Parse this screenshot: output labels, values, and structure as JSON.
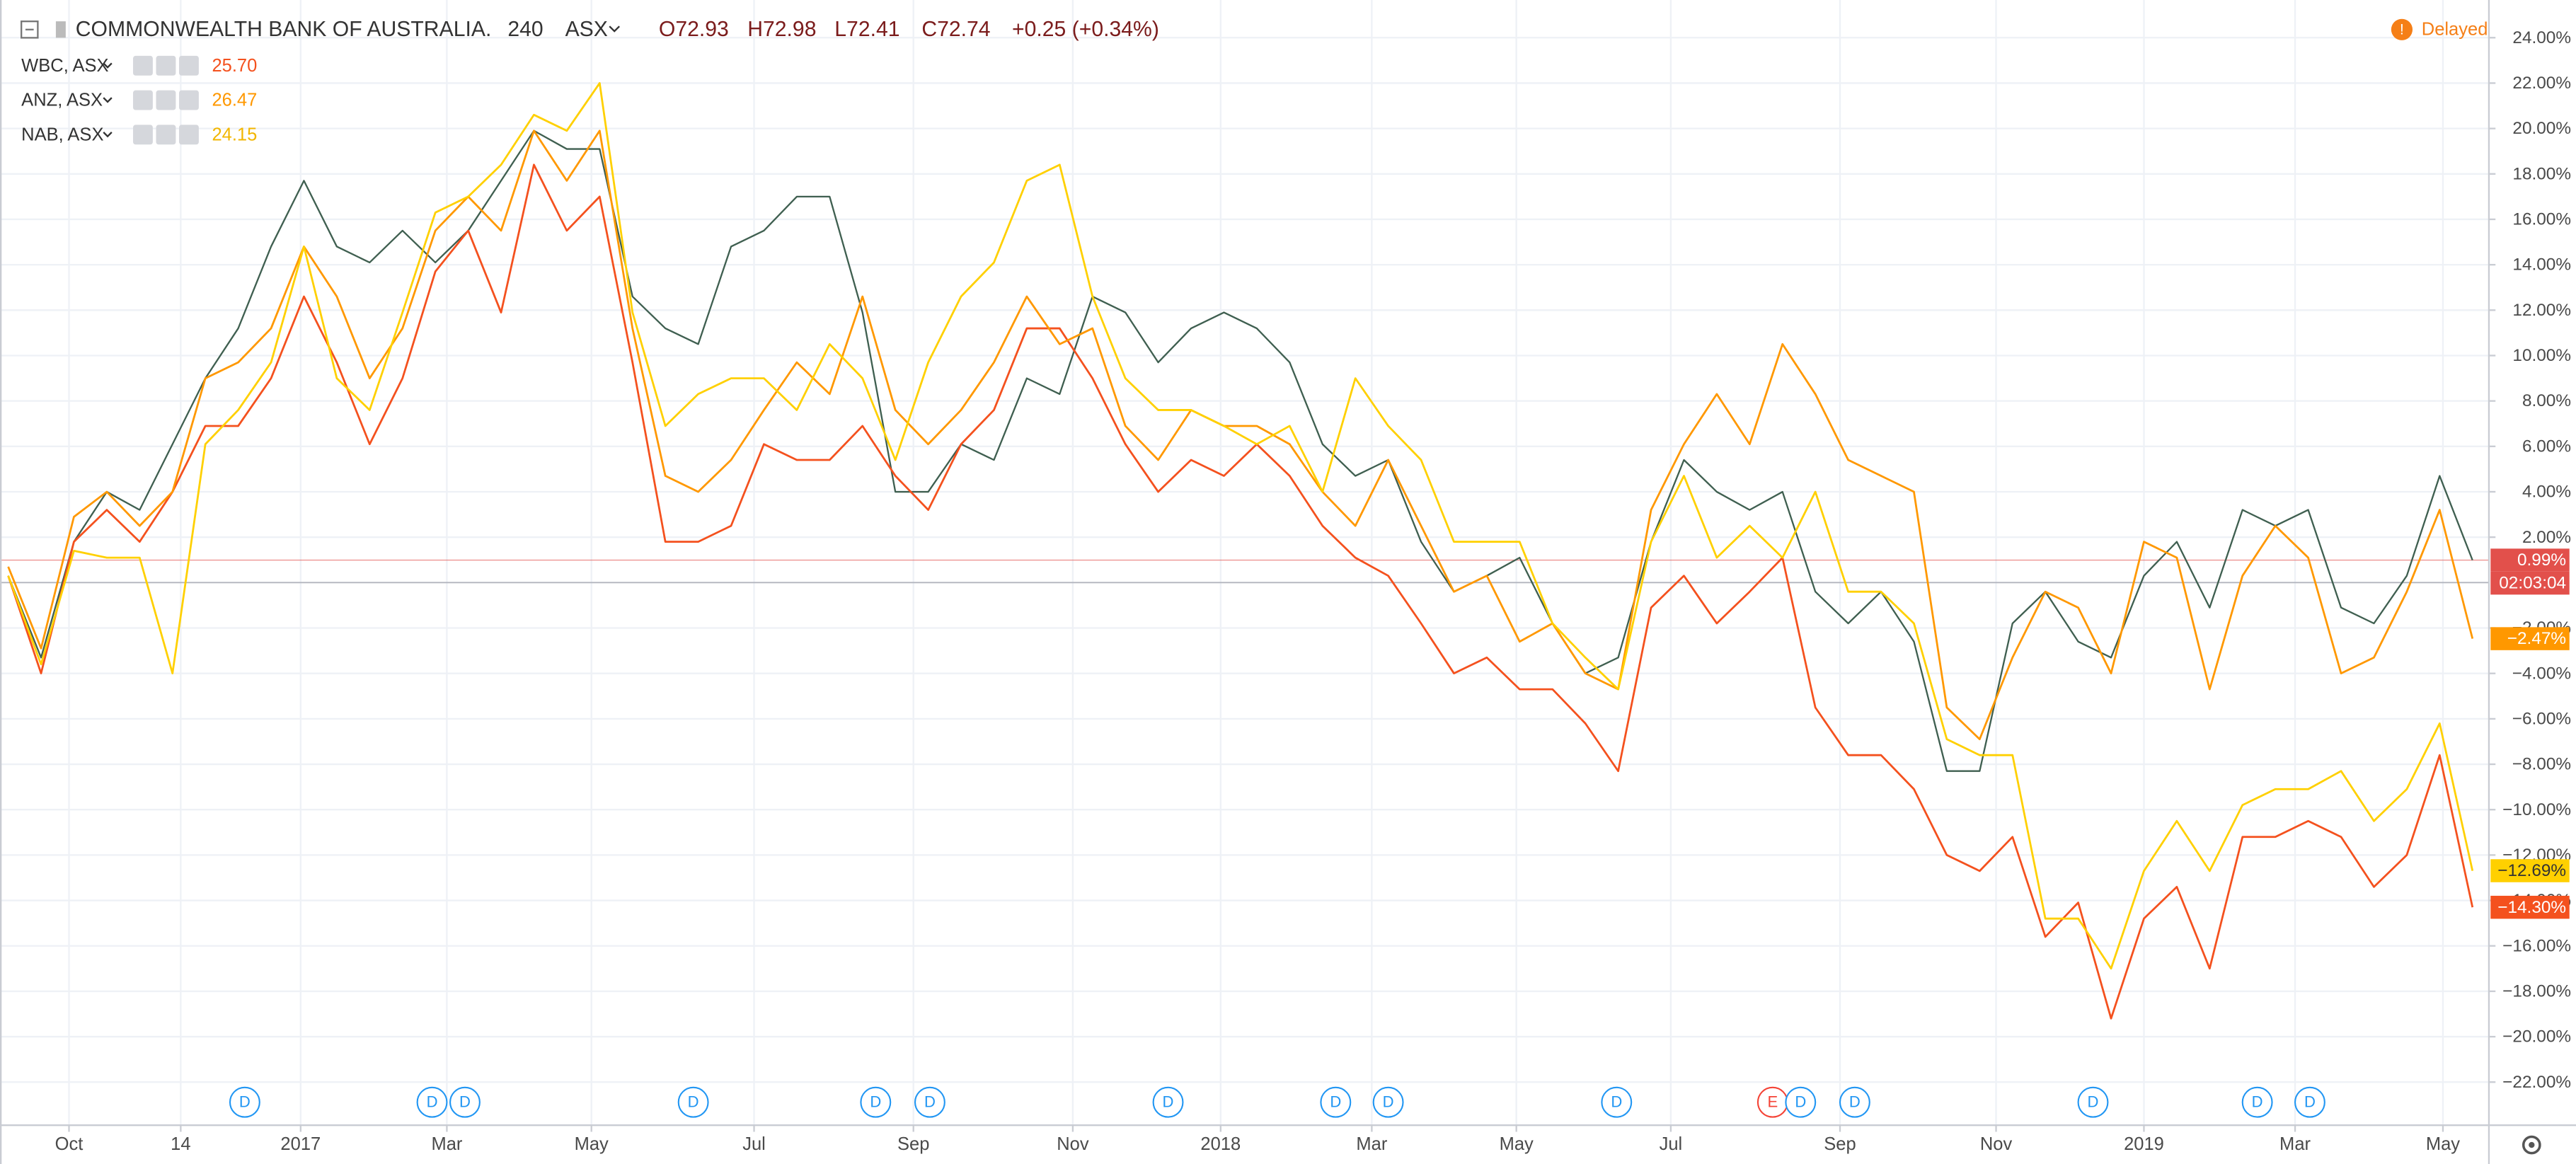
{
  "chart_data": {
    "type": "line",
    "title": "COMMONWEALTH BANK OF AUSTRALIA.",
    "interval": "240",
    "exchange": "ASX",
    "ohlc": [
      "O72.93",
      "H72.98",
      "L72.41",
      "C72.74"
    ],
    "change": "+0.25 (+0.34%)",
    "status": "Delayed",
    "countdown": "02:03:04",
    "grid": true,
    "baseline": 0,
    "xlim": [
      -0.25,
      75.5
    ],
    "xticks": [
      {
        "value": 1.85,
        "label": "Oct"
      },
      {
        "value": 5.25,
        "label": "14"
      },
      {
        "value": 8.9,
        "label": "2017"
      },
      {
        "value": 13.35,
        "label": "Mar"
      },
      {
        "value": 17.75,
        "label": "May"
      },
      {
        "value": 22.7,
        "label": "Jul"
      },
      {
        "value": 27.55,
        "label": "Sep"
      },
      {
        "value": 32.4,
        "label": "Nov"
      },
      {
        "value": 36.9,
        "label": "2018"
      },
      {
        "value": 41.5,
        "label": "Mar"
      },
      {
        "value": 45.9,
        "label": "May"
      },
      {
        "value": 50.6,
        "label": "Jul"
      },
      {
        "value": 55.75,
        "label": "Sep"
      },
      {
        "value": 60.5,
        "label": "Nov"
      },
      {
        "value": 65,
        "label": "2019"
      },
      {
        "value": 69.6,
        "label": "Mar"
      },
      {
        "value": 74.1,
        "label": "May"
      }
    ],
    "ylim": [
      -23.9,
      25.66
    ],
    "yticks": [
      {
        "value": 24,
        "label": "24.00%"
      },
      {
        "value": 22,
        "label": "22.00%"
      },
      {
        "value": 20,
        "label": "20.00%"
      },
      {
        "value": 18,
        "label": "18.00%"
      },
      {
        "value": 16,
        "label": "16.00%"
      },
      {
        "value": 14,
        "label": "14.00%"
      },
      {
        "value": 12,
        "label": "12.00%"
      },
      {
        "value": 10,
        "label": "10.00%"
      },
      {
        "value": 8,
        "label": "8.00%"
      },
      {
        "value": 6,
        "label": "6.00%"
      },
      {
        "value": 4,
        "label": "4.00%"
      },
      {
        "value": 2,
        "label": "2.00%"
      },
      {
        "value": -2,
        "label": "−2.00%"
      },
      {
        "value": -4,
        "label": "−4.00%"
      },
      {
        "value": -6,
        "label": "−6.00%"
      },
      {
        "value": -8,
        "label": "−8.00%"
      },
      {
        "value": -10,
        "label": "−10.00%"
      },
      {
        "value": -12,
        "label": "−12.00%"
      },
      {
        "value": -14,
        "label": "−14.00%"
      },
      {
        "value": -16,
        "label": "−16.00%"
      },
      {
        "value": -18,
        "label": "−18.00%"
      },
      {
        "value": -20,
        "label": "−20.00%"
      },
      {
        "value": -22,
        "label": "−22.00%"
      }
    ],
    "series": [
      {
        "name": "WBC, ASX",
        "legend_value": "25.70",
        "color": "#f4511e",
        "badge_text": "#ffffff",
        "last_label": "−14.30%",
        "values": [
          0.3,
          -4,
          1.8,
          3.2,
          1.8,
          4,
          6.9,
          6.9,
          9,
          12.6,
          9.7,
          6.1,
          9,
          13.7,
          15.5,
          11.9,
          18.4,
          15.5,
          17,
          9.7,
          1.8,
          1.8,
          2.5,
          6.1,
          5.4,
          5.4,
          6.9,
          4.7,
          3.2,
          6.1,
          7.6,
          11.2,
          11.2,
          9,
          6.1,
          4,
          5.4,
          4.7,
          6.1,
          4.7,
          2.5,
          1.1,
          0.3,
          -1.8,
          -4,
          -3.3,
          -4.7,
          -4.7,
          -6.2,
          -8.3,
          -1.1,
          0.3,
          -1.8,
          -0.4,
          1.1,
          -5.5,
          -7.6,
          -7.6,
          -9.1,
          -12,
          -12.7,
          -11.2,
          -15.6,
          -14.1,
          -19.2,
          -14.8,
          -13.4,
          -17,
          -11.2,
          -11.2,
          -10.5,
          -11.2,
          -13.4,
          -12,
          -7.6,
          -14.3
        ]
      },
      {
        "name": "ANZ, ASX",
        "legend_value": "26.47",
        "color": "#ff9800",
        "badge_text": "#ffffff",
        "last_label": "−2.47%",
        "values": [
          0.7,
          -2.9,
          2.9,
          4,
          2.5,
          4,
          9,
          9.7,
          11.2,
          14.8,
          12.6,
          9,
          11.2,
          15.5,
          17,
          15.5,
          19.9,
          17.7,
          19.9,
          11.2,
          4.7,
          4,
          5.4,
          7.6,
          9.7,
          8.3,
          12.6,
          7.6,
          6.1,
          7.6,
          9.7,
          12.6,
          10.5,
          11.2,
          6.9,
          5.4,
          7.6,
          6.9,
          6.9,
          6.1,
          4,
          2.5,
          5.4,
          2.5,
          -0.4,
          0.3,
          -2.6,
          -1.8,
          -4,
          -4.7,
          3.2,
          6.1,
          8.3,
          6.1,
          10.5,
          8.3,
          5.4,
          4.7,
          4,
          -5.5,
          -6.9,
          -3.3,
          -0.4,
          -1.1,
          -4,
          1.8,
          1.1,
          -4.7,
          0.3,
          2.5,
          1.1,
          -4,
          -3.3,
          -0.4,
          3.2,
          -2.47
        ]
      },
      {
        "name": "NAB, ASX",
        "legend_value": "24.15",
        "color": "#ffd000",
        "badge_text": "#333333",
        "last_label": "−12.69%",
        "values": [
          0.3,
          -3.6,
          1.4,
          1.1,
          1.1,
          -4,
          6.1,
          7.6,
          9.7,
          14.8,
          9,
          7.6,
          11.9,
          16.3,
          17,
          18.4,
          20.6,
          19.9,
          22,
          11.9,
          6.9,
          8.3,
          9,
          9,
          7.6,
          10.5,
          9,
          5.4,
          9.7,
          12.6,
          14.1,
          17.7,
          18.4,
          12.6,
          9,
          7.6,
          7.6,
          6.9,
          6.1,
          6.9,
          4,
          9,
          6.9,
          5.4,
          1.8,
          1.8,
          1.8,
          -1.8,
          -3.3,
          -4.7,
          1.8,
          4.7,
          1.1,
          2.5,
          1.1,
          4,
          -0.4,
          -0.4,
          -1.8,
          -6.9,
          -7.6,
          -7.6,
          -14.8,
          -14.8,
          -17,
          -12.7,
          -10.5,
          -12.7,
          -9.8,
          -9.1,
          -9.1,
          -8.3,
          -10.5,
          -9.1,
          -6.2,
          -12.69
        ]
      },
      {
        "color": "#3f5f50",
        "badge_color": "#e2504b",
        "badge_text": "#ffffff",
        "last_label": "0.99%",
        "values": [
          0.3,
          -3.3,
          1.8,
          4,
          3.2,
          6.1,
          9,
          11.2,
          14.8,
          17.7,
          14.8,
          14.1,
          15.5,
          14.1,
          15.5,
          17.7,
          19.9,
          19.1,
          19.1,
          12.6,
          11.2,
          10.5,
          14.8,
          15.5,
          17,
          17,
          11.9,
          4,
          4,
          6.1,
          5.4,
          9,
          8.3,
          12.6,
          11.9,
          9.7,
          11.2,
          11.9,
          11.2,
          9.7,
          6.1,
          4.7,
          5.4,
          1.8,
          -0.4,
          0.3,
          1.1,
          -1.8,
          -4,
          -3.3,
          1.8,
          5.4,
          4,
          3.2,
          4,
          -0.4,
          -1.8,
          -0.4,
          -2.6,
          -8.3,
          -8.3,
          -1.8,
          -0.4,
          -2.6,
          -3.3,
          0.3,
          1.8,
          -1.1,
          3.2,
          2.5,
          3.2,
          -1.1,
          -1.8,
          0.3,
          4.7,
          0.99
        ]
      }
    ],
    "events": [
      {
        "label": "D",
        "x": 7.2
      },
      {
        "label": "D",
        "x": 12.9
      },
      {
        "label": "D",
        "x": 13.9
      },
      {
        "label": "D",
        "x": 20.85
      },
      {
        "label": "D",
        "x": 26.4
      },
      {
        "label": "D",
        "x": 28.05
      },
      {
        "label": "D",
        "x": 35.3
      },
      {
        "label": "D",
        "x": 40.4
      },
      {
        "label": "D",
        "x": 42
      },
      {
        "label": "D",
        "x": 48.95
      },
      {
        "label": "E",
        "x": 53.7
      },
      {
        "label": "D",
        "x": 54.55
      },
      {
        "label": "D",
        "x": 56.2
      },
      {
        "label": "D",
        "x": 63.45
      },
      {
        "label": "D",
        "x": 68.45
      },
      {
        "label": "D",
        "x": 70.05
      }
    ]
  }
}
